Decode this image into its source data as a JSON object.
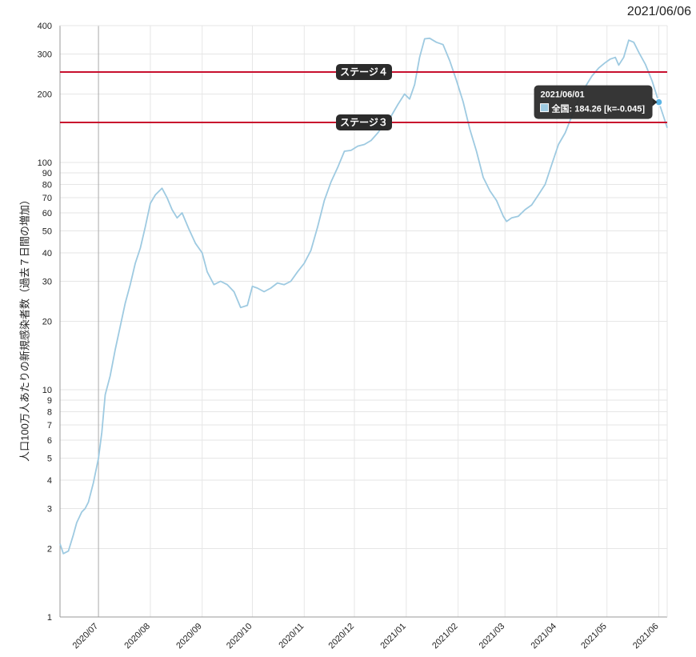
{
  "header": {
    "date": "2021/06/06"
  },
  "chart_data": {
    "type": "line",
    "title": "",
    "xlabel": "",
    "ylabel": "人口100万人あたりの新規感染者数（過去７日間の増加）",
    "y_scale": "log",
    "ylim": [
      1,
      400
    ],
    "y_ticks": [
      1,
      2,
      3,
      4,
      5,
      6,
      7,
      8,
      9,
      10,
      20,
      30,
      40,
      50,
      60,
      70,
      80,
      90,
      100,
      200,
      300,
      400
    ],
    "xlim": [
      "2020-06-08",
      "2021-06-06"
    ],
    "x_ticks": [
      {
        "date": "2020-07-01",
        "label": "2020/07"
      },
      {
        "date": "2020-08-01",
        "label": "2020/08"
      },
      {
        "date": "2020-09-01",
        "label": "2020/09"
      },
      {
        "date": "2020-10-01",
        "label": "2020/10"
      },
      {
        "date": "2020-11-01",
        "label": "2020/11"
      },
      {
        "date": "2020-12-01",
        "label": "2020/12"
      },
      {
        "date": "2021-01-01",
        "label": "2021/01"
      },
      {
        "date": "2021-02-01",
        "label": "2021/02"
      },
      {
        "date": "2021-03-01",
        "label": "2021/03"
      },
      {
        "date": "2021-04-01",
        "label": "2021/04"
      },
      {
        "date": "2021-05-01",
        "label": "2021/05"
      },
      {
        "date": "2021-06-01",
        "label": "2021/06"
      }
    ],
    "grid": true,
    "reference_lines": [
      {
        "label": "ステージ４",
        "value": 250,
        "color": "#c8102e"
      },
      {
        "label": "ステージ３",
        "value": 150,
        "color": "#c8102e"
      }
    ],
    "series": [
      {
        "name": "全国",
        "color": "#9ecae1",
        "points": [
          [
            "2020-06-08",
            2.1
          ],
          [
            "2020-06-10",
            1.9
          ],
          [
            "2020-06-13",
            1.95
          ],
          [
            "2020-06-16",
            2.3
          ],
          [
            "2020-06-18",
            2.6
          ],
          [
            "2020-06-21",
            2.9
          ],
          [
            "2020-06-23",
            3.0
          ],
          [
            "2020-06-25",
            3.2
          ],
          [
            "2020-06-28",
            3.9
          ],
          [
            "2020-07-01",
            5.0
          ],
          [
            "2020-07-03",
            6.5
          ],
          [
            "2020-07-05",
            9.5
          ],
          [
            "2020-07-08",
            11.5
          ],
          [
            "2020-07-11",
            15.0
          ],
          [
            "2020-07-14",
            19.0
          ],
          [
            "2020-07-17",
            24.0
          ],
          [
            "2020-07-20",
            29.0
          ],
          [
            "2020-07-23",
            36.0
          ],
          [
            "2020-07-26",
            42.0
          ],
          [
            "2020-07-29",
            52.0
          ],
          [
            "2020-08-01",
            66.0
          ],
          [
            "2020-08-04",
            72.0
          ],
          [
            "2020-08-08",
            77.0
          ],
          [
            "2020-08-11",
            70.0
          ],
          [
            "2020-08-14",
            62.0
          ],
          [
            "2020-08-17",
            57.0
          ],
          [
            "2020-08-20",
            60.0
          ],
          [
            "2020-08-24",
            51.0
          ],
          [
            "2020-08-28",
            44.0
          ],
          [
            "2020-09-01",
            40.0
          ],
          [
            "2020-09-04",
            33.0
          ],
          [
            "2020-09-08",
            29.0
          ],
          [
            "2020-09-12",
            30.0
          ],
          [
            "2020-09-16",
            29.0
          ],
          [
            "2020-09-20",
            27.0
          ],
          [
            "2020-09-24",
            23.0
          ],
          [
            "2020-09-28",
            23.5
          ],
          [
            "2020-10-01",
            28.5
          ],
          [
            "2020-10-04",
            28.0
          ],
          [
            "2020-10-08",
            27.0
          ],
          [
            "2020-10-12",
            28.0
          ],
          [
            "2020-10-16",
            29.5
          ],
          [
            "2020-10-20",
            29.0
          ],
          [
            "2020-10-24",
            30.0
          ],
          [
            "2020-10-28",
            33.0
          ],
          [
            "2020-11-01",
            36.0
          ],
          [
            "2020-11-05",
            41.0
          ],
          [
            "2020-11-09",
            52.0
          ],
          [
            "2020-11-13",
            68.0
          ],
          [
            "2020-11-17",
            82.0
          ],
          [
            "2020-11-21",
            95.0
          ],
          [
            "2020-11-25",
            112.0
          ],
          [
            "2020-11-29",
            113.0
          ],
          [
            "2020-12-03",
            118.0
          ],
          [
            "2020-12-07",
            120.0
          ],
          [
            "2020-12-11",
            125.0
          ],
          [
            "2020-12-15",
            135.0
          ],
          [
            "2020-12-19",
            148.0
          ],
          [
            "2020-12-23",
            160.0
          ],
          [
            "2020-12-27",
            180.0
          ],
          [
            "2020-12-31",
            200.0
          ],
          [
            "2021-01-03",
            190.0
          ],
          [
            "2021-01-06",
            220.0
          ],
          [
            "2021-01-09",
            290.0
          ],
          [
            "2021-01-12",
            350.0
          ],
          [
            "2021-01-15",
            352.0
          ],
          [
            "2021-01-19",
            338.0
          ],
          [
            "2021-01-23",
            330.0
          ],
          [
            "2021-01-27",
            280.0
          ],
          [
            "2021-01-31",
            230.0
          ],
          [
            "2021-02-04",
            185.0
          ],
          [
            "2021-02-08",
            140.0
          ],
          [
            "2021-02-12",
            112.0
          ],
          [
            "2021-02-16",
            86.0
          ],
          [
            "2021-02-20",
            75.0
          ],
          [
            "2021-02-24",
            68.0
          ],
          [
            "2021-02-28",
            58.0
          ],
          [
            "2021-03-02",
            55.0
          ],
          [
            "2021-03-05",
            57.0
          ],
          [
            "2021-03-09",
            58.0
          ],
          [
            "2021-03-13",
            62.0
          ],
          [
            "2021-03-17",
            65.0
          ],
          [
            "2021-03-21",
            72.0
          ],
          [
            "2021-03-25",
            80.0
          ],
          [
            "2021-03-29",
            98.0
          ],
          [
            "2021-04-02",
            120.0
          ],
          [
            "2021-04-06",
            135.0
          ],
          [
            "2021-04-10",
            160.0
          ],
          [
            "2021-04-14",
            190.0
          ],
          [
            "2021-04-18",
            215.0
          ],
          [
            "2021-04-22",
            240.0
          ],
          [
            "2021-04-26",
            260.0
          ],
          [
            "2021-04-30",
            275.0
          ],
          [
            "2021-05-03",
            285.0
          ],
          [
            "2021-05-06",
            290.0
          ],
          [
            "2021-05-08",
            268.0
          ],
          [
            "2021-05-11",
            290.0
          ],
          [
            "2021-05-14",
            345.0
          ],
          [
            "2021-05-17",
            338.0
          ],
          [
            "2021-05-20",
            305.0
          ],
          [
            "2021-05-24",
            270.0
          ],
          [
            "2021-05-28",
            228.0
          ],
          [
            "2021-06-01",
            184.26
          ],
          [
            "2021-06-04",
            158.0
          ],
          [
            "2021-06-06",
            142.0
          ]
        ]
      }
    ],
    "tooltip": {
      "date": "2021/06/01",
      "series": "全国",
      "value_text": "全国: 184.26 [k=-0.045]",
      "x": "2021-06-01",
      "y": 184.26
    }
  }
}
